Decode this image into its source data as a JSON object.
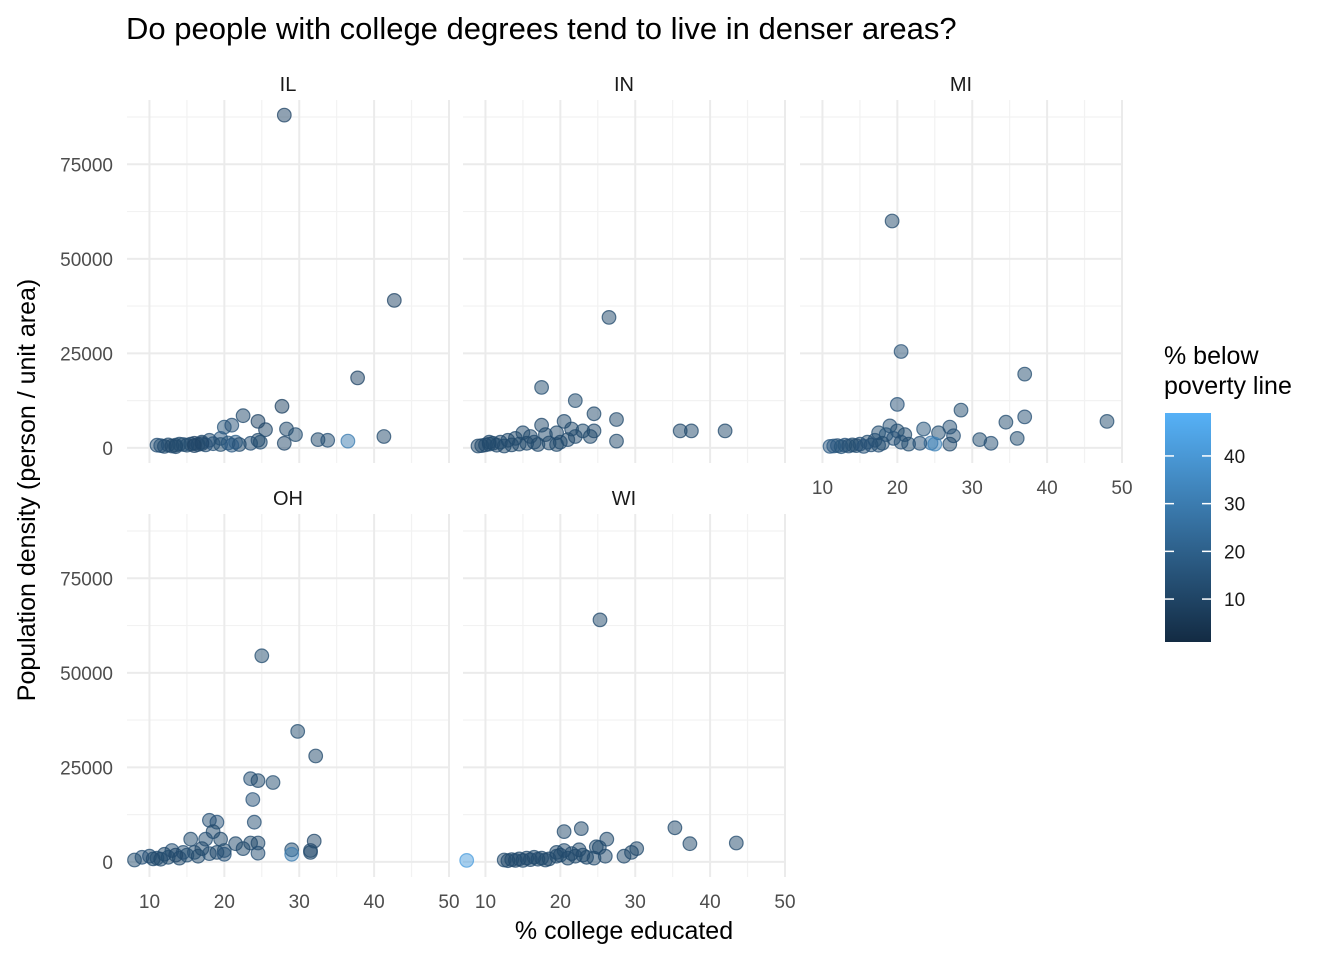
{
  "chart_data": {
    "type": "scatter",
    "title": "Do people with college degrees tend to live in denser areas?",
    "xlabel": "% college educated",
    "ylabel": "Population density (person / unit area)",
    "xlim": [
      7,
      50
    ],
    "ylim": [
      -4000,
      92000
    ],
    "x_ticks": [
      10,
      20,
      30,
      40,
      50
    ],
    "y_ticks": [
      0,
      25000,
      50000,
      75000
    ],
    "grid": true,
    "legend": {
      "title_lines": [
        "% below",
        "poverty line"
      ],
      "range": [
        1,
        49
      ],
      "ticks": [
        10,
        20,
        30,
        40
      ],
      "color_low": "#132B43",
      "color_high": "#56B1F7",
      "placement": "right"
    },
    "point_alpha": 0.5,
    "facets": [
      {
        "name": "IL",
        "points": [
          [
            28,
            88000,
            10
          ],
          [
            42.7,
            39000,
            10
          ],
          [
            37.8,
            18500,
            10
          ],
          [
            27.7,
            11000,
            9
          ],
          [
            22.5,
            8500,
            12
          ],
          [
            24.5,
            7000,
            10
          ],
          [
            20,
            5500,
            16
          ],
          [
            21,
            6000,
            15
          ],
          [
            28.3,
            5000,
            12
          ],
          [
            25.5,
            4800,
            11
          ],
          [
            29.5,
            3500,
            13
          ],
          [
            32.5,
            2200,
            12
          ],
          [
            33.8,
            2000,
            14
          ],
          [
            36.5,
            1800,
            30
          ],
          [
            41.3,
            3000,
            12
          ],
          [
            24.5,
            2000,
            12
          ],
          [
            23.5,
            1200,
            14
          ],
          [
            28,
            1200,
            11
          ],
          [
            19.5,
            2500,
            18
          ],
          [
            21.5,
            1500,
            20
          ],
          [
            18,
            2000,
            14
          ],
          [
            17,
            1500,
            12
          ],
          [
            16,
            1200,
            10
          ],
          [
            15.5,
            1000,
            12
          ],
          [
            14.5,
            900,
            14
          ],
          [
            13.5,
            700,
            12
          ],
          [
            12.5,
            800,
            13
          ],
          [
            11.5,
            600,
            15
          ],
          [
            13,
            500,
            11
          ],
          [
            15,
            700,
            13
          ],
          [
            16.5,
            900,
            12
          ],
          [
            17.5,
            800,
            14
          ],
          [
            18.5,
            1100,
            15
          ],
          [
            19.5,
            900,
            13
          ],
          [
            20.5,
            1300,
            16
          ],
          [
            22,
            900,
            12
          ],
          [
            14,
            1000,
            13
          ],
          [
            12,
            400,
            12
          ],
          [
            11,
            700,
            14
          ],
          [
            21,
            700,
            18
          ],
          [
            17,
            1100,
            11
          ],
          [
            16,
            600,
            10
          ],
          [
            13.5,
            300,
            12
          ],
          [
            24.8,
            1500,
            13
          ]
        ]
      },
      {
        "name": "IN",
        "points": [
          [
            26.5,
            34500,
            12
          ],
          [
            17.5,
            16000,
            13
          ],
          [
            22,
            12500,
            13
          ],
          [
            24.5,
            9000,
            12
          ],
          [
            20.5,
            7000,
            12
          ],
          [
            27.5,
            7500,
            12
          ],
          [
            37.5,
            4500,
            12
          ],
          [
            42,
            4500,
            12
          ],
          [
            36,
            4500,
            12
          ],
          [
            21.5,
            5000,
            12
          ],
          [
            23,
            4500,
            13
          ],
          [
            24.5,
            4500,
            12
          ],
          [
            17.5,
            6000,
            12
          ],
          [
            15,
            4000,
            12
          ],
          [
            18,
            3500,
            12
          ],
          [
            19.5,
            4000,
            12
          ],
          [
            16,
            3000,
            12
          ],
          [
            22,
            3000,
            12
          ],
          [
            24,
            3000,
            12
          ],
          [
            27.5,
            1800,
            12
          ],
          [
            20,
            1500,
            12
          ],
          [
            14,
            2500,
            12
          ],
          [
            13,
            2000,
            12
          ],
          [
            12,
            1500,
            12
          ],
          [
            11,
            1200,
            12
          ],
          [
            10.5,
            1000,
            12
          ],
          [
            10,
            800,
            12
          ],
          [
            9.5,
            600,
            12
          ],
          [
            9,
            500,
            12
          ],
          [
            12.5,
            500,
            12
          ],
          [
            14.5,
            1000,
            12
          ],
          [
            16.5,
            1500,
            12
          ],
          [
            18.5,
            1300,
            12
          ],
          [
            19.5,
            900,
            12
          ],
          [
            21,
            2200,
            12
          ],
          [
            13.5,
            800,
            12
          ],
          [
            15.5,
            1200,
            12
          ],
          [
            11.5,
            700,
            12
          ],
          [
            17,
            900,
            12
          ],
          [
            10.5,
            1500,
            12
          ]
        ]
      },
      {
        "name": "MI",
        "points": [
          [
            19.3,
            60000,
            12
          ],
          [
            20.5,
            25500,
            14
          ],
          [
            37,
            19500,
            13
          ],
          [
            20,
            11500,
            15
          ],
          [
            28.5,
            10000,
            13
          ],
          [
            48,
            7000,
            13
          ],
          [
            37,
            8200,
            14
          ],
          [
            34.5,
            6800,
            13
          ],
          [
            27,
            5500,
            14
          ],
          [
            25.5,
            4000,
            13
          ],
          [
            23.5,
            5000,
            16
          ],
          [
            21,
            3500,
            12
          ],
          [
            27.5,
            3200,
            14
          ],
          [
            19,
            5800,
            14
          ],
          [
            20,
            4500,
            13
          ],
          [
            17.5,
            4000,
            13
          ],
          [
            18.5,
            3500,
            16
          ],
          [
            31,
            2200,
            13
          ],
          [
            32.5,
            1200,
            14
          ],
          [
            36,
            2500,
            13
          ],
          [
            24.5,
            1300,
            28
          ],
          [
            25,
            1000,
            32
          ],
          [
            27,
            1000,
            12
          ],
          [
            21.5,
            1000,
            13
          ],
          [
            19.5,
            2500,
            15
          ],
          [
            17,
            2000,
            14
          ],
          [
            16,
            1500,
            13
          ],
          [
            15,
            1000,
            14
          ],
          [
            14,
            800,
            13
          ],
          [
            13,
            700,
            15
          ],
          [
            12,
            600,
            14
          ],
          [
            11.5,
            500,
            17
          ],
          [
            11,
            400,
            18
          ],
          [
            12.5,
            300,
            16
          ],
          [
            13.5,
            500,
            14
          ],
          [
            14.5,
            600,
            13
          ],
          [
            16.5,
            800,
            14
          ],
          [
            18,
            1200,
            13
          ],
          [
            20.5,
            1500,
            14
          ],
          [
            23,
            1200,
            15
          ],
          [
            15.5,
            400,
            15
          ],
          [
            17.5,
            700,
            14
          ]
        ]
      },
      {
        "name": "OH",
        "points": [
          [
            25,
            54500,
            13
          ],
          [
            29.8,
            34500,
            13
          ],
          [
            32.2,
            28000,
            12
          ],
          [
            23.5,
            22000,
            14
          ],
          [
            24.5,
            21500,
            12
          ],
          [
            26.5,
            21000,
            13
          ],
          [
            23.8,
            16500,
            15
          ],
          [
            18,
            11000,
            14
          ],
          [
            19,
            10500,
            15
          ],
          [
            24,
            10500,
            14
          ],
          [
            18.5,
            8000,
            12
          ],
          [
            17.5,
            6000,
            14
          ],
          [
            19.5,
            6000,
            12
          ],
          [
            15.5,
            6000,
            13
          ],
          [
            21.5,
            4800,
            12
          ],
          [
            23.5,
            5000,
            12
          ],
          [
            24.5,
            5000,
            12
          ],
          [
            32,
            5500,
            11
          ],
          [
            29,
            3200,
            13
          ],
          [
            31.5,
            3000,
            11
          ],
          [
            29,
            2000,
            30
          ],
          [
            31.5,
            2500,
            12
          ],
          [
            24.5,
            2300,
            14
          ],
          [
            16,
            2500,
            13
          ],
          [
            13,
            3000,
            14
          ],
          [
            12,
            2000,
            12
          ],
          [
            11,
            1000,
            13
          ],
          [
            10,
            1500,
            14
          ],
          [
            9,
            1200,
            15
          ],
          [
            8,
            500,
            13
          ],
          [
            10.5,
            800,
            12
          ],
          [
            12.5,
            1200,
            13
          ],
          [
            14,
            1000,
            12
          ],
          [
            15,
            1800,
            13
          ],
          [
            16.5,
            1500,
            12
          ],
          [
            18,
            2200,
            14
          ],
          [
            19,
            2500,
            12
          ],
          [
            20,
            3000,
            13
          ],
          [
            17,
            3500,
            12
          ],
          [
            14.5,
            2500,
            14
          ],
          [
            11.5,
            700,
            12
          ],
          [
            13.5,
            1800,
            11
          ],
          [
            20,
            2000,
            15
          ],
          [
            22.5,
            3500,
            12
          ]
        ]
      },
      {
        "name": "WI",
        "points": [
          [
            25.3,
            64000,
            12
          ],
          [
            35.3,
            9000,
            12
          ],
          [
            22.8,
            8800,
            12
          ],
          [
            20.5,
            8000,
            12
          ],
          [
            26.2,
            6000,
            12
          ],
          [
            43.5,
            5000,
            12
          ],
          [
            37.3,
            4800,
            12
          ],
          [
            30.2,
            3500,
            12
          ],
          [
            24.8,
            4000,
            12
          ],
          [
            25.2,
            3800,
            12
          ],
          [
            22.5,
            3200,
            12
          ],
          [
            20.5,
            3000,
            12
          ],
          [
            19.5,
            2500,
            12
          ],
          [
            28.5,
            1500,
            12
          ],
          [
            29.5,
            2500,
            12
          ],
          [
            7.5,
            400,
            42
          ],
          [
            12.5,
            500,
            12
          ],
          [
            13.5,
            600,
            12
          ],
          [
            14.5,
            800,
            12
          ],
          [
            15.5,
            1000,
            12
          ],
          [
            16.5,
            1200,
            12
          ],
          [
            17.5,
            1000,
            12
          ],
          [
            18.5,
            800,
            12
          ],
          [
            19.5,
            1500,
            12
          ],
          [
            21,
            1000,
            12
          ],
          [
            22,
            1500,
            12
          ],
          [
            23.5,
            1200,
            12
          ],
          [
            24.5,
            1000,
            12
          ],
          [
            26,
            1500,
            12
          ],
          [
            14,
            400,
            12
          ],
          [
            16,
            600,
            12
          ],
          [
            18,
            500,
            12
          ],
          [
            13,
            300,
            12
          ],
          [
            15,
            400,
            12
          ],
          [
            17,
            700,
            12
          ],
          [
            20,
            1800,
            12
          ],
          [
            21.5,
            2200,
            12
          ],
          [
            23,
            1800,
            12
          ]
        ]
      }
    ]
  }
}
